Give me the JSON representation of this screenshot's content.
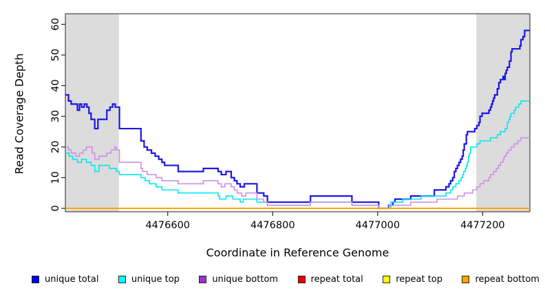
{
  "chart_data": {
    "type": "line",
    "title": "",
    "xlabel": "Coordinate in Reference Genome",
    "ylabel": "Read Coverage Depth",
    "step_interpolation": true,
    "grid": false,
    "xlim": [
      4476405,
      4477290
    ],
    "ylim": [
      0,
      63
    ],
    "x_ticks": [
      4476600,
      4476800,
      4477000,
      4477200
    ],
    "y_ticks": [
      0,
      10,
      20,
      30,
      40,
      50,
      60
    ],
    "shaded_regions": [
      {
        "from": 4476405,
        "to": 4476507,
        "color": "#DCDCDC"
      },
      {
        "from": 4477188,
        "to": 4477290,
        "color": "#DCDCDC"
      }
    ],
    "frame_color": "#444444",
    "legend_position": "bottom",
    "series": [
      {
        "name": "unique total",
        "line_color": "#1A15E6",
        "legend_color": "#0000FF",
        "width": 2.2,
        "points": [
          [
            4476405,
            37
          ],
          [
            4476411,
            35
          ],
          [
            4476416,
            34
          ],
          [
            4476428,
            32
          ],
          [
            4476432,
            34
          ],
          [
            4476436,
            33
          ],
          [
            4476441,
            34
          ],
          [
            4476446,
            33
          ],
          [
            4476450,
            31
          ],
          [
            4476454,
            29
          ],
          [
            4476461,
            26
          ],
          [
            4476467,
            29
          ],
          [
            4476484,
            32
          ],
          [
            4476490,
            33
          ],
          [
            4476495,
            34
          ],
          [
            4476500,
            33
          ],
          [
            4476508,
            26
          ],
          [
            4476549,
            22
          ],
          [
            4476555,
            20
          ],
          [
            4476561,
            19
          ],
          [
            4476569,
            18
          ],
          [
            4476576,
            17
          ],
          [
            4476583,
            16
          ],
          [
            4476589,
            15
          ],
          [
            4476594,
            14
          ],
          [
            4476620,
            12
          ],
          [
            4476668,
            13
          ],
          [
            4476696,
            12
          ],
          [
            4476702,
            11
          ],
          [
            4476711,
            12
          ],
          [
            4476721,
            10
          ],
          [
            4476727,
            9
          ],
          [
            4476732,
            8
          ],
          [
            4476738,
            7
          ],
          [
            4476746,
            8
          ],
          [
            4476770,
            5
          ],
          [
            4476783,
            4
          ],
          [
            4476790,
            2
          ],
          [
            4476872,
            4
          ],
          [
            4476951,
            2
          ],
          [
            4477002,
            0
          ],
          [
            4477021,
            1
          ],
          [
            4477029,
            2
          ],
          [
            4477033,
            3
          ],
          [
            4477063,
            4
          ],
          [
            4477108,
            6
          ],
          [
            4477130,
            7
          ],
          [
            4477136,
            8
          ],
          [
            4477139,
            9
          ],
          [
            4477143,
            10
          ],
          [
            4477146,
            12
          ],
          [
            4477149,
            13
          ],
          [
            4477152,
            14
          ],
          [
            4477155,
            15
          ],
          [
            4477158,
            16
          ],
          [
            4477161,
            17
          ],
          [
            4477163,
            19
          ],
          [
            4477165,
            21
          ],
          [
            4477169,
            24
          ],
          [
            4477171,
            25
          ],
          [
            4477185,
            26
          ],
          [
            4477189,
            27
          ],
          [
            4477193,
            28
          ],
          [
            4477195,
            30
          ],
          [
            4477199,
            31
          ],
          [
            4477212,
            32
          ],
          [
            4477215,
            33
          ],
          [
            4477217,
            34
          ],
          [
            4477219,
            35
          ],
          [
            4477221,
            36
          ],
          [
            4477223,
            37
          ],
          [
            4477228,
            39
          ],
          [
            4477231,
            41
          ],
          [
            4477234,
            42
          ],
          [
            4477239,
            43
          ],
          [
            4477241,
            42
          ],
          [
            4477243,
            44
          ],
          [
            4477245,
            45
          ],
          [
            4477247,
            46
          ],
          [
            4477251,
            48
          ],
          [
            4477254,
            51
          ],
          [
            4477256,
            52
          ],
          [
            4477271,
            53
          ],
          [
            4477273,
            55
          ],
          [
            4477277,
            56
          ],
          [
            4477280,
            58
          ],
          [
            4477290,
            58
          ]
        ]
      },
      {
        "name": "unique top",
        "line_color": "#00E8F0",
        "legend_color": "#00FFFF",
        "width": 1.6,
        "points": [
          [
            4476405,
            18
          ],
          [
            4476412,
            17
          ],
          [
            4476419,
            16
          ],
          [
            4476428,
            15
          ],
          [
            4476436,
            16
          ],
          [
            4476445,
            15
          ],
          [
            4476454,
            14
          ],
          [
            4476461,
            12
          ],
          [
            4476469,
            14
          ],
          [
            4476489,
            13
          ],
          [
            4476502,
            12
          ],
          [
            4476508,
            11
          ],
          [
            4476549,
            10
          ],
          [
            4476557,
            9
          ],
          [
            4476565,
            8
          ],
          [
            4476578,
            7
          ],
          [
            4476589,
            6
          ],
          [
            4476620,
            5
          ],
          [
            4476696,
            4
          ],
          [
            4476699,
            3
          ],
          [
            4476711,
            4
          ],
          [
            4476724,
            3
          ],
          [
            4476738,
            2
          ],
          [
            4476744,
            3
          ],
          [
            4476770,
            2
          ],
          [
            4476790,
            1
          ],
          [
            4476872,
            2
          ],
          [
            4476951,
            1
          ],
          [
            4477002,
            0
          ],
          [
            4477025,
            2
          ],
          [
            4477048,
            3
          ],
          [
            4477083,
            4
          ],
          [
            4477130,
            5
          ],
          [
            4477139,
            6
          ],
          [
            4477143,
            7
          ],
          [
            4477149,
            8
          ],
          [
            4477155,
            9
          ],
          [
            4477159,
            10
          ],
          [
            4477162,
            11
          ],
          [
            4477164,
            12
          ],
          [
            4477167,
            13
          ],
          [
            4477169,
            14
          ],
          [
            4477171,
            15
          ],
          [
            4477173,
            17
          ],
          [
            4477175,
            18
          ],
          [
            4477177,
            20
          ],
          [
            4477189,
            21
          ],
          [
            4477195,
            22
          ],
          [
            4477215,
            23
          ],
          [
            4477228,
            24
          ],
          [
            4477234,
            25
          ],
          [
            4477243,
            26
          ],
          [
            4477247,
            28
          ],
          [
            4477250,
            29
          ],
          [
            4477252,
            30
          ],
          [
            4477254,
            31
          ],
          [
            4477260,
            32
          ],
          [
            4477263,
            33
          ],
          [
            4477269,
            34
          ],
          [
            4477273,
            35
          ],
          [
            4477290,
            35
          ]
        ]
      },
      {
        "name": "unique bottom",
        "line_color": "#CC8FE8",
        "legend_color": "#9932CC",
        "width": 1.6,
        "points": [
          [
            4476405,
            20
          ],
          [
            4476411,
            19
          ],
          [
            4476416,
            18
          ],
          [
            4476425,
            17
          ],
          [
            4476432,
            18
          ],
          [
            4476439,
            19
          ],
          [
            4476445,
            20
          ],
          [
            4476456,
            18
          ],
          [
            4476461,
            16
          ],
          [
            4476469,
            17
          ],
          [
            4476484,
            18
          ],
          [
            4476492,
            19
          ],
          [
            4476499,
            20
          ],
          [
            4476502,
            19
          ],
          [
            4476508,
            15
          ],
          [
            4476549,
            13
          ],
          [
            4476552,
            12
          ],
          [
            4476561,
            11
          ],
          [
            4476578,
            10
          ],
          [
            4476589,
            9
          ],
          [
            4476620,
            8
          ],
          [
            4476668,
            9
          ],
          [
            4476696,
            8
          ],
          [
            4476702,
            7
          ],
          [
            4476709,
            8
          ],
          [
            4476721,
            7
          ],
          [
            4476727,
            6
          ],
          [
            4476732,
            5
          ],
          [
            4476741,
            4
          ],
          [
            4476749,
            5
          ],
          [
            4476770,
            3
          ],
          [
            4476783,
            2
          ],
          [
            4476790,
            1
          ],
          [
            4476872,
            2
          ],
          [
            4476951,
            1
          ],
          [
            4477002,
            0
          ],
          [
            4477022,
            1
          ],
          [
            4477063,
            2
          ],
          [
            4477113,
            3
          ],
          [
            4477152,
            4
          ],
          [
            4477165,
            5
          ],
          [
            4477181,
            6
          ],
          [
            4477189,
            7
          ],
          [
            4477195,
            8
          ],
          [
            4477202,
            9
          ],
          [
            4477212,
            10
          ],
          [
            4477215,
            11
          ],
          [
            4477221,
            12
          ],
          [
            4477226,
            13
          ],
          [
            4477230,
            14
          ],
          [
            4477234,
            15
          ],
          [
            4477239,
            16
          ],
          [
            4477241,
            17
          ],
          [
            4477245,
            18
          ],
          [
            4477249,
            19
          ],
          [
            4477254,
            20
          ],
          [
            4477260,
            21
          ],
          [
            4477267,
            22
          ],
          [
            4477273,
            23
          ],
          [
            4477290,
            23
          ]
        ]
      },
      {
        "name": "repeat total",
        "line_color": "#DD0000",
        "legend_color": "#EE0000",
        "width": 1.6,
        "points": [
          [
            4476405,
            0
          ],
          [
            4477290,
            0
          ]
        ]
      },
      {
        "name": "repeat top",
        "line_color": "#FFFF00",
        "legend_color": "#FFFF00",
        "width": 1.6,
        "points": [
          [
            4476405,
            0
          ],
          [
            4477290,
            0
          ]
        ]
      },
      {
        "name": "repeat bottom",
        "line_color": "#FFA500",
        "legend_color": "#FFA500",
        "width": 2,
        "points": [
          [
            4476405,
            0
          ],
          [
            4477290,
            0
          ]
        ]
      }
    ],
    "legend": {
      "entries": [
        {
          "label": "unique total",
          "color": "#0000FF"
        },
        {
          "label": "unique top",
          "color": "#00FFFF"
        },
        {
          "label": "unique bottom",
          "color": "#9932CC"
        },
        {
          "label": "repeat total",
          "color": "#EE0000"
        },
        {
          "label": "repeat top",
          "color": "#FFFF00"
        },
        {
          "label": "repeat bottom",
          "color": "#FFA500"
        }
      ]
    }
  }
}
